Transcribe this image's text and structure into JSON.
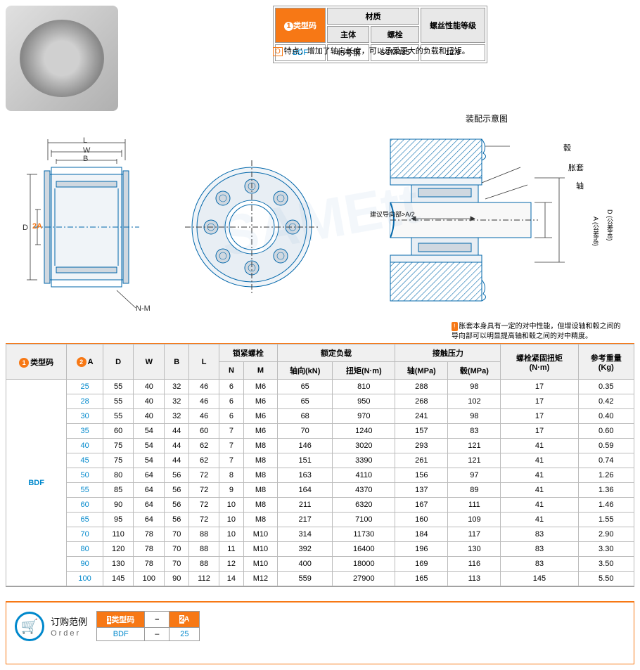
{
  "material_table": {
    "headers": {
      "type": "类型码",
      "material": "材质",
      "body": "主体",
      "bolt": "螺栓",
      "grade": "螺丝性能等级"
    },
    "row": {
      "type": "BDF",
      "body": "45号钢",
      "bolt": "SCM435",
      "grade": "12.9"
    },
    "num_badge": "1"
  },
  "feature": {
    "badge": "O",
    "text": "特点：增加了轴向长度，可以承受更大的负载和扭矩。"
  },
  "diagrams": {
    "labels": {
      "L": "L",
      "W": "W",
      "B": "B",
      "D": "D",
      "A": "A",
      "NM": "N-M",
      "num2": "2"
    },
    "assembly": {
      "title": "装配示意图",
      "hub": "毂",
      "sleeve": "胀套",
      "shaft": "轴",
      "guide": "建议导向部>A/2",
      "A_tol": "A (公差h8)",
      "D_tol": "D (公差H8)"
    },
    "note": {
      "badge": "!",
      "text": "胀套本身具有一定的对中性能，但增设轴和毂之间的导向部可以明显提高轴和毂之间的对中精度。"
    },
    "colors": {
      "line": "#0066aa",
      "fill": "#f0f4f8",
      "dim": "#333",
      "orange": "#f77815"
    }
  },
  "main_table": {
    "num1": "1",
    "num2": "2",
    "headers": {
      "type": "类型码",
      "A": "A",
      "D": "D",
      "W": "W",
      "B": "B",
      "L": "L",
      "bolt": "锁紧螺栓",
      "N": "N",
      "M": "M",
      "load": "额定负载",
      "axial": "轴向(kN)",
      "torque": "扭矩(N·m)",
      "pressure": "接触压力",
      "shaft_p": "轴(MPa)",
      "hub_p": "毂(MPa)",
      "tighten": "螺栓紧固扭矩",
      "tighten_u": "(N·m)",
      "weight": "参考重量",
      "weight_u": "(Kg)"
    },
    "type_code": "BDF",
    "rows": [
      {
        "A": "25",
        "D": "55",
        "W": "40",
        "B": "32",
        "L": "46",
        "N": "6",
        "M": "M6",
        "ax": "65",
        "tq": "810",
        "sp": "288",
        "hp": "98",
        "tt": "17",
        "wt": "0.35"
      },
      {
        "A": "28",
        "D": "55",
        "W": "40",
        "B": "32",
        "L": "46",
        "N": "6",
        "M": "M6",
        "ax": "65",
        "tq": "950",
        "sp": "268",
        "hp": "102",
        "tt": "17",
        "wt": "0.42"
      },
      {
        "A": "30",
        "D": "55",
        "W": "40",
        "B": "32",
        "L": "46",
        "N": "6",
        "M": "M6",
        "ax": "68",
        "tq": "970",
        "sp": "241",
        "hp": "98",
        "tt": "17",
        "wt": "0.40"
      },
      {
        "A": "35",
        "D": "60",
        "W": "54",
        "B": "44",
        "L": "60",
        "N": "7",
        "M": "M6",
        "ax": "70",
        "tq": "1240",
        "sp": "157",
        "hp": "83",
        "tt": "17",
        "wt": "0.60"
      },
      {
        "A": "40",
        "D": "75",
        "W": "54",
        "B": "44",
        "L": "62",
        "N": "7",
        "M": "M8",
        "ax": "146",
        "tq": "3020",
        "sp": "293",
        "hp": "121",
        "tt": "41",
        "wt": "0.59"
      },
      {
        "A": "45",
        "D": "75",
        "W": "54",
        "B": "44",
        "L": "62",
        "N": "7",
        "M": "M8",
        "ax": "151",
        "tq": "3390",
        "sp": "261",
        "hp": "121",
        "tt": "41",
        "wt": "0.74"
      },
      {
        "A": "50",
        "D": "80",
        "W": "64",
        "B": "56",
        "L": "72",
        "N": "8",
        "M": "M8",
        "ax": "163",
        "tq": "4110",
        "sp": "156",
        "hp": "97",
        "tt": "41",
        "wt": "1.26"
      },
      {
        "A": "55",
        "D": "85",
        "W": "64",
        "B": "56",
        "L": "72",
        "N": "9",
        "M": "M8",
        "ax": "164",
        "tq": "4370",
        "sp": "137",
        "hp": "89",
        "tt": "41",
        "wt": "1.36"
      },
      {
        "A": "60",
        "D": "90",
        "W": "64",
        "B": "56",
        "L": "72",
        "N": "10",
        "M": "M8",
        "ax": "211",
        "tq": "6320",
        "sp": "167",
        "hp": "111",
        "tt": "41",
        "wt": "1.46"
      },
      {
        "A": "65",
        "D": "95",
        "W": "64",
        "B": "56",
        "L": "72",
        "N": "10",
        "M": "M8",
        "ax": "217",
        "tq": "7100",
        "sp": "160",
        "hp": "109",
        "tt": "41",
        "wt": "1.55"
      },
      {
        "A": "70",
        "D": "110",
        "W": "78",
        "B": "70",
        "L": "88",
        "N": "10",
        "M": "M10",
        "ax": "314",
        "tq": "11730",
        "sp": "184",
        "hp": "117",
        "tt": "83",
        "wt": "2.90"
      },
      {
        "A": "80",
        "D": "120",
        "W": "78",
        "B": "70",
        "L": "88",
        "N": "11",
        "M": "M10",
        "ax": "392",
        "tq": "16400",
        "sp": "196",
        "hp": "130",
        "tt": "83",
        "wt": "3.30"
      },
      {
        "A": "90",
        "D": "130",
        "W": "78",
        "B": "70",
        "L": "88",
        "N": "12",
        "M": "M10",
        "ax": "400",
        "tq": "18000",
        "sp": "169",
        "hp": "116",
        "tt": "83",
        "wt": "3.50"
      },
      {
        "A": "100",
        "D": "145",
        "W": "100",
        "B": "90",
        "L": "112",
        "N": "14",
        "M": "M12",
        "ax": "559",
        "tq": "27900",
        "sp": "165",
        "hp": "113",
        "tt": "145",
        "wt": "5.50"
      }
    ]
  },
  "order": {
    "title_zh": "订购范例",
    "title_en": "Order",
    "headers": {
      "type": "类型码",
      "A": "A",
      "sep": "–"
    },
    "num1": "1",
    "num2": "2",
    "row": {
      "type": "BDF",
      "A": "25"
    }
  },
  "colors": {
    "orange": "#f77815",
    "blue": "#0088cc",
    "border": "#999",
    "hdr_bg": "#e8e8e8"
  }
}
